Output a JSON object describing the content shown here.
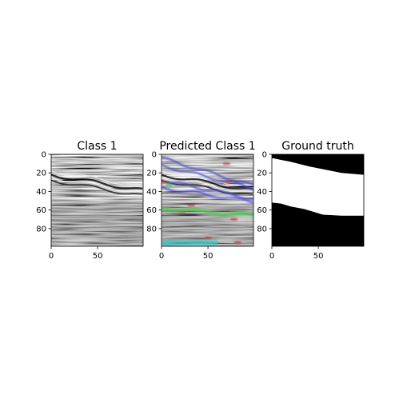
{
  "chart_data": [
    {
      "type": "heatmap",
      "title": "Class 1",
      "content": "seismic-section-grayscale",
      "xlim": [
        0,
        99
      ],
      "ylim": [
        99,
        0
      ],
      "xticks": [
        "0",
        "50"
      ],
      "yticks": [
        "0",
        "20",
        "40",
        "60",
        "80"
      ],
      "xtick_values": [
        0,
        50
      ],
      "ytick_values": [
        0,
        20,
        40,
        60,
        80
      ]
    },
    {
      "type": "heatmap",
      "title": "Predicted Class 1",
      "content": "seismic-section-with-predicted-class-overlay",
      "overlay_colors": [
        "#4a4ad8",
        "#c04040",
        "#3ccf3c",
        "#40c8c8"
      ],
      "xlim": [
        0,
        99
      ],
      "ylim": [
        99,
        0
      ],
      "xticks": [
        "0",
        "50"
      ],
      "yticks": [
        "0",
        "20",
        "40",
        "60",
        "80"
      ],
      "xtick_values": [
        0,
        50
      ],
      "ytick_values": [
        0,
        20,
        40,
        60,
        80
      ]
    },
    {
      "type": "heatmap",
      "title": "Ground truth",
      "content": "binary-mask",
      "mask_colors": [
        "#000000",
        "#ffffff"
      ],
      "mask_top_boundary": [
        [
          0,
          4
        ],
        [
          10,
          6
        ],
        [
          20,
          8
        ],
        [
          40,
          13
        ],
        [
          60,
          17
        ],
        [
          75,
          20
        ],
        [
          99,
          22
        ]
      ],
      "mask_bottom_boundary": [
        [
          0,
          52
        ],
        [
          10,
          53
        ],
        [
          20,
          56
        ],
        [
          35,
          59
        ],
        [
          45,
          62
        ],
        [
          55,
          65
        ],
        [
          75,
          66
        ],
        [
          99,
          66
        ]
      ],
      "xlim": [
        0,
        99
      ],
      "ylim": [
        99,
        0
      ],
      "xticks": [
        "0",
        "50"
      ],
      "yticks": [
        "0",
        "20",
        "40",
        "60",
        "80"
      ],
      "xtick_values": [
        0,
        50
      ],
      "ytick_values": [
        0,
        20,
        40,
        60,
        80
      ]
    }
  ]
}
